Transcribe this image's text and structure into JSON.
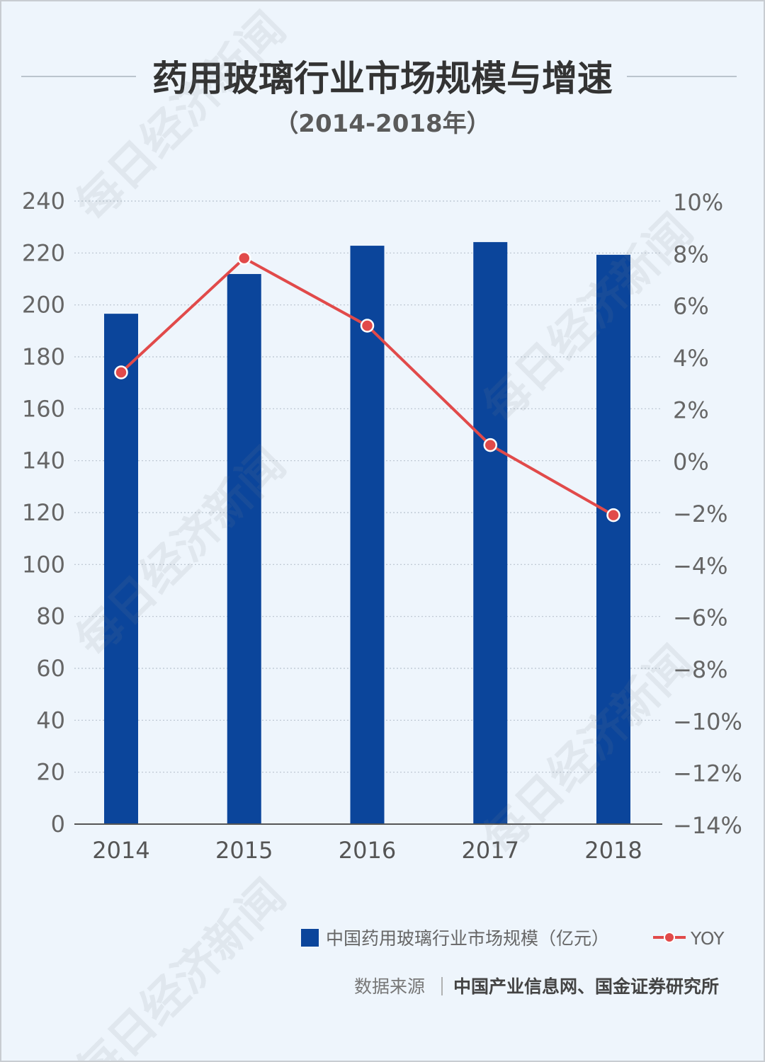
{
  "chart_data": {
    "type": "bar",
    "title": "药用玻璃行业市场规模与增速",
    "subtitle": "（2014-2018年）",
    "categories": [
      "2014",
      "2015",
      "2016",
      "2017",
      "2018"
    ],
    "series": [
      {
        "name": "中国药用玻璃行业市场规模（亿元）",
        "type": "bar",
        "axis": "left",
        "color": "#0b459b",
        "values": [
          196.6,
          211.9,
          222.8,
          224.2,
          219.3
        ]
      },
      {
        "name": "YOY",
        "type": "line",
        "axis": "right",
        "color": "#e14a4a",
        "values": [
          3.4,
          7.8,
          5.2,
          0.6,
          -2.1
        ]
      }
    ],
    "y_left": {
      "ylim": [
        0,
        240
      ],
      "ticks": [
        0,
        20,
        40,
        60,
        80,
        100,
        120,
        140,
        160,
        180,
        200,
        220,
        240
      ],
      "tick_labels": [
        "0",
        "20",
        "40",
        "60",
        "80",
        "100",
        "120",
        "140",
        "160",
        "180",
        "200",
        "220",
        "240"
      ]
    },
    "y_right": {
      "ylim": [
        -14,
        10
      ],
      "ticks": [
        -14,
        -12,
        -10,
        -8,
        -6,
        -4,
        -2,
        0,
        2,
        4,
        6,
        8,
        10
      ],
      "tick_labels": [
        "−14%",
        "−12%",
        "−10%",
        "−8%",
        "−6%",
        "−4%",
        "−2%",
        "0%",
        "2%",
        "4%",
        "6%",
        "8%",
        "10%"
      ]
    },
    "xlabel": "",
    "ylabel": "",
    "grid": true,
    "legend": "bottom"
  },
  "source": {
    "label": "数据来源",
    "text": "中国产业信息网、国金证券研究所"
  },
  "watermark": "每日经济新闻",
  "colors": {
    "background": "#eef5fc",
    "border": "#c8ccd1"
  }
}
